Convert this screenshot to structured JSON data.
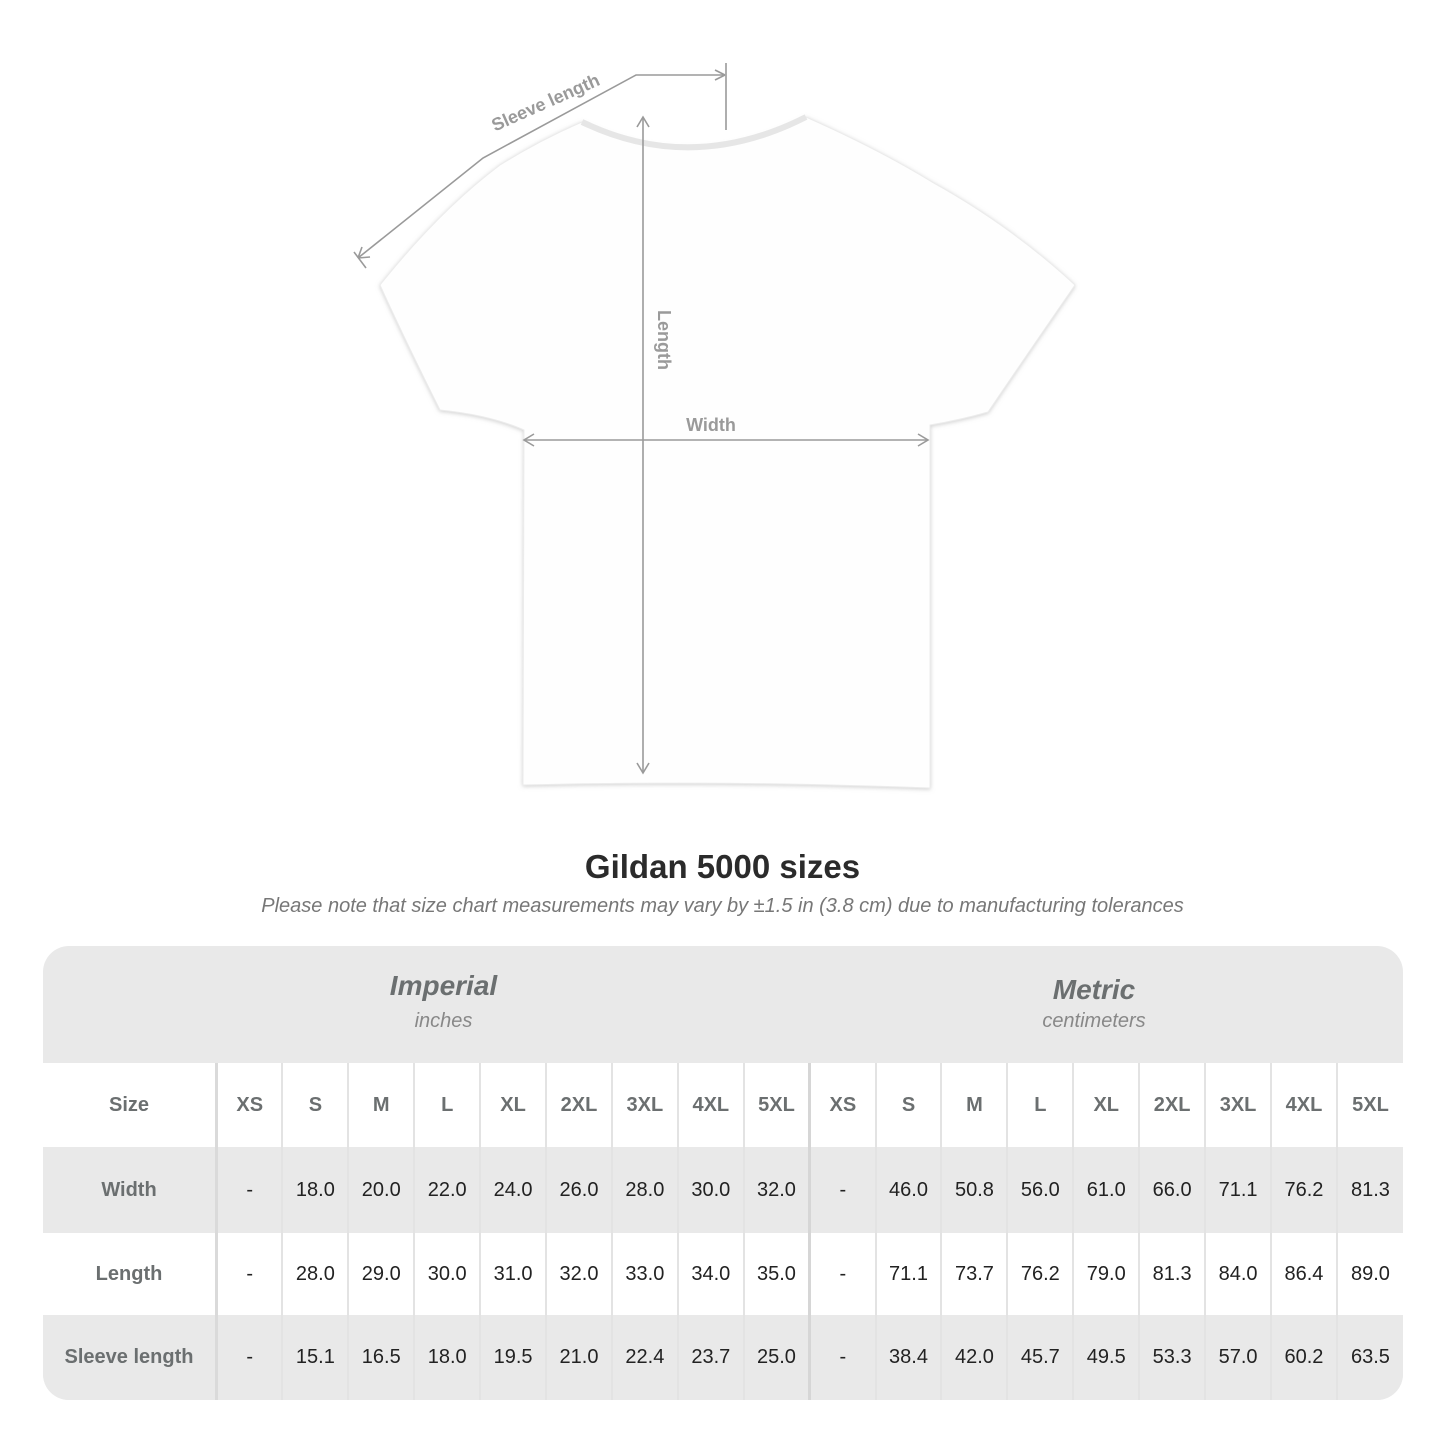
{
  "diagram": {
    "labels": {
      "sleeve": "Sleeve length",
      "length": "Length",
      "width": "Width"
    },
    "line_color": "#9a9a9a"
  },
  "title": "Gildan 5000 sizes",
  "subtitle": "Please note that size chart measurements may vary by ±1.5 in (3.8 cm) due to manufacturing tolerances",
  "table": {
    "imperial": {
      "name": "Imperial",
      "unit": "inches"
    },
    "metric": {
      "name": "Metric",
      "unit": "centimeters"
    },
    "size_label": "Size",
    "sizes": [
      "XS",
      "S",
      "M",
      "L",
      "XL",
      "2XL",
      "3XL",
      "4XL",
      "5XL"
    ],
    "rows": [
      {
        "label": "Width",
        "imperial": [
          "-",
          "18.0",
          "20.0",
          "22.0",
          "24.0",
          "26.0",
          "28.0",
          "30.0",
          "32.0"
        ],
        "metric": [
          "-",
          "46.0",
          "50.8",
          "56.0",
          "61.0",
          "66.0",
          "71.1",
          "76.2",
          "81.3"
        ]
      },
      {
        "label": "Length",
        "imperial": [
          "-",
          "28.0",
          "29.0",
          "30.0",
          "31.0",
          "32.0",
          "33.0",
          "34.0",
          "35.0"
        ],
        "metric": [
          "-",
          "71.1",
          "73.7",
          "76.2",
          "79.0",
          "81.3",
          "84.0",
          "86.4",
          "89.0"
        ]
      },
      {
        "label": "Sleeve length",
        "imperial": [
          "-",
          "15.1",
          "16.5",
          "18.0",
          "19.5",
          "21.0",
          "22.4",
          "23.7",
          "25.0"
        ],
        "metric": [
          "-",
          "38.4",
          "42.0",
          "45.7",
          "49.5",
          "53.3",
          "57.0",
          "60.2",
          "63.5"
        ]
      }
    ]
  }
}
